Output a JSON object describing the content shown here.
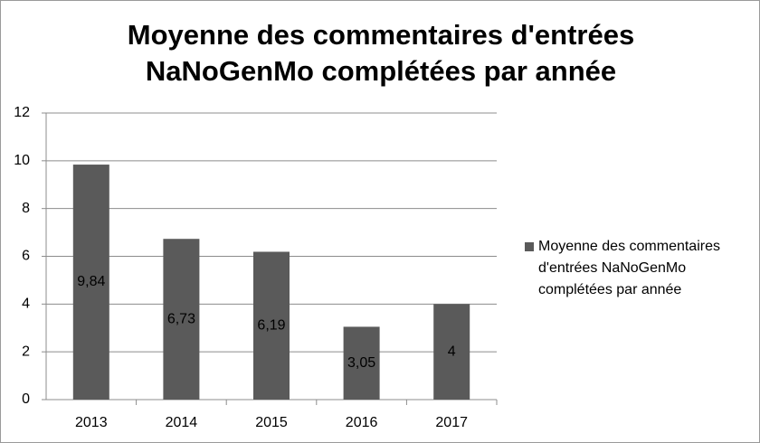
{
  "chart_data": {
    "type": "bar",
    "title": "Moyenne des commentaires d'entrées NaNoGenMo complétées par année",
    "categories": [
      "2013",
      "2014",
      "2015",
      "2016",
      "2017"
    ],
    "series": [
      {
        "name": "Moyenne des commentaires d'entrées NaNoGenMo complétées par année",
        "color": "#5a5a5a",
        "values": [
          9.84,
          6.73,
          6.19,
          3.05,
          4
        ],
        "value_labels": [
          "9,84",
          "6,73",
          "6,19",
          "3,05",
          "4"
        ]
      }
    ],
    "ylim": [
      0,
      12
    ],
    "yticks": [
      0,
      2,
      4,
      6,
      8,
      10,
      12
    ],
    "grid": true,
    "legend": "right"
  }
}
